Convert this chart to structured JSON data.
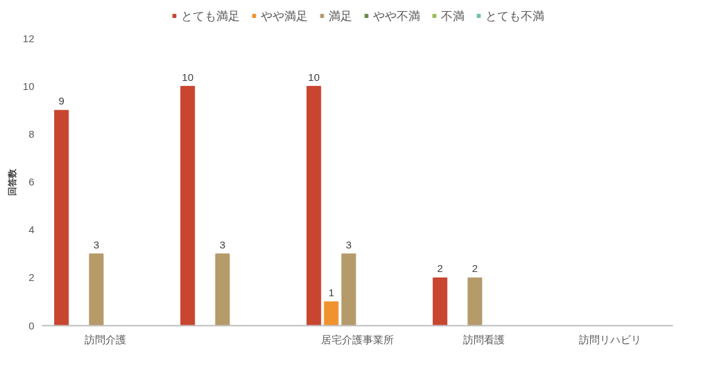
{
  "chart_data": {
    "type": "bar",
    "ylabel": "回答数",
    "categories": [
      "訪問介護",
      null,
      "居宅介護事業所",
      "訪問看護",
      "訪問リハビリ"
    ],
    "series": [
      {
        "name": "とても満足",
        "color": "#c8452f",
        "values": [
          9,
          10,
          10,
          2,
          0
        ],
        "value_labels": [
          "9",
          "10",
          "10",
          "2",
          null
        ]
      },
      {
        "name": "やや満足",
        "color": "#f0922e",
        "values": [
          0,
          0,
          1,
          0,
          0
        ],
        "value_labels": [
          null,
          null,
          "1",
          null,
          null
        ]
      },
      {
        "name": "満足",
        "color": "#b59a6a",
        "values": [
          3,
          3,
          3,
          2,
          0
        ],
        "value_labels": [
          "3",
          "3",
          "3",
          "2",
          null
        ]
      },
      {
        "name": "やや不満",
        "color": "#6d8a4a",
        "values": [
          0,
          0,
          0,
          0,
          0
        ],
        "value_labels": [
          null,
          null,
          null,
          null,
          null
        ]
      },
      {
        "name": "不満",
        "color": "#9dbb5a",
        "values": [
          0,
          0,
          0,
          0,
          0
        ],
        "value_labels": [
          null,
          null,
          null,
          null,
          null
        ]
      },
      {
        "name": "とても不満",
        "color": "#6fbfa5",
        "values": [
          0,
          0,
          0,
          0,
          0
        ],
        "value_labels": [
          null,
          null,
          null,
          null,
          null
        ]
      }
    ],
    "ylim": [
      0,
      12
    ],
    "yticks": [
      0,
      2,
      4,
      6,
      8,
      10,
      12
    ],
    "grid": false,
    "legend": "top"
  }
}
